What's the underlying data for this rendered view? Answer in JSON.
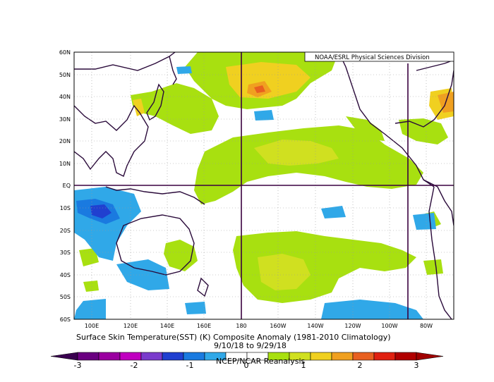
{
  "credit_top": "NOAA/ESRL Physical Sciences Division",
  "title": "Surface Skin Temperature(SST) (K) Composite Anomaly (1981-2010 Climatology)",
  "date_range": "9/10/18  to 9/29/18",
  "credit_bottom": "NCEP/NCAR Reanalysis",
  "lat_labels": [
    "60N",
    "50N",
    "40N",
    "30N",
    "20N",
    "10N",
    "EQ",
    "10S",
    "20S",
    "30S",
    "40S",
    "50S",
    "60S"
  ],
  "lon_labels": [
    "100E",
    "120E",
    "140E",
    "160E",
    "180",
    "160W",
    "140W",
    "120W",
    "100W",
    "80W"
  ],
  "colorbar": {
    "labels": [
      "-3",
      "-2",
      "-1",
      "0",
      "1",
      "2",
      "3"
    ],
    "colors": [
      "#6a0080",
      "#9a00a0",
      "#c000c0",
      "#7a3ccc",
      "#2040d0",
      "#1a7ae0",
      "#30a8e8",
      "#ffffff",
      "#ffffff",
      "#a8e010",
      "#d0e020",
      "#f0d020",
      "#f0a020",
      "#e86020",
      "#e02010",
      "#b00000"
    ],
    "left_arrow": "#3a0050",
    "right_arrow": "#a00000"
  }
}
